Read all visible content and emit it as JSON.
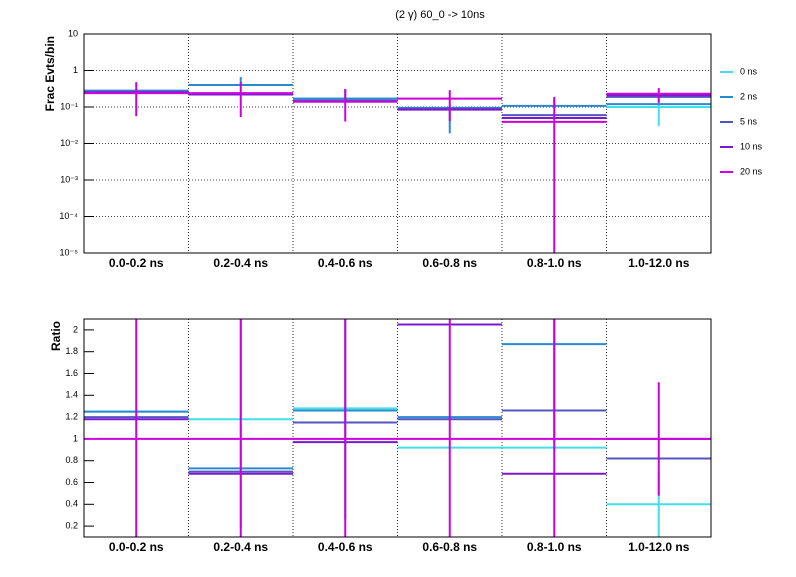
{
  "chart_data": [
    {
      "type": "step",
      "title": "(2 γ) 60_0 -> 10ns",
      "y_label": "Frac Evts/bin",
      "log_y": true,
      "grid": "both",
      "legend": "right",
      "categories": [
        "0.0-0.2 ns",
        "0.2-0.4 ns",
        "0.4-0.6 ns",
        "0.6-0.8 ns",
        "0.8-1.0 ns",
        "1.0-12.0 ns"
      ],
      "ylim": [
        1e-05,
        10
      ],
      "yticks": [
        {
          "value": 1e-05,
          "label": "10⁻⁵"
        },
        {
          "value": 0.0001,
          "label": "10⁻⁴"
        },
        {
          "value": 0.001,
          "label": "10⁻³"
        },
        {
          "value": 0.01,
          "label": "10⁻²"
        },
        {
          "value": 0.1,
          "label": "10⁻¹"
        },
        1,
        10
      ],
      "series": [
        {
          "name": "0 ns",
          "color": "#40e0e8",
          "values": [
            0.27,
            0.4,
            0.17,
            0.095,
            0.05,
            0.1
          ],
          "errors_low": [
            null,
            null,
            null,
            null,
            null,
            0.07
          ],
          "errors_high": [
            null,
            null,
            null,
            null,
            null,
            0.2
          ]
        },
        {
          "name": "2 ns",
          "color": "#2a8ad0",
          "values": [
            0.28,
            0.4,
            0.17,
            0.095,
            0.107,
            0.12
          ],
          "errors_low": [
            null,
            null,
            null,
            0.076,
            null,
            null
          ],
          "errors_high": [
            null,
            0.26,
            0.14,
            null,
            0.058,
            null
          ]
        },
        {
          "name": "5 ns",
          "color": "#5454c0",
          "values": [
            0.26,
            0.22,
            0.15,
            0.09,
            0.06,
            0.19
          ],
          "errors_low": [
            null,
            null,
            null,
            null,
            null,
            null
          ],
          "errors_high": [
            null,
            null,
            null,
            null,
            null,
            null
          ]
        },
        {
          "name": "10 ns",
          "color": "#7a1ad0",
          "values": [
            0.25,
            0.22,
            0.14,
            0.085,
            0.05,
            0.21
          ],
          "errors_low": [
            null,
            null,
            null,
            null,
            null,
            null
          ],
          "errors_high": [
            null,
            null,
            null,
            null,
            null,
            null
          ]
        },
        {
          "name": "20 ns",
          "color": "#cc00dd",
          "values": [
            0.24,
            0.24,
            0.14,
            0.17,
            0.039,
            0.23
          ],
          "errors_low": [
            0.184,
            0.187,
            0.1,
            0.129,
            0.039,
            0.1
          ],
          "errors_high": [
            0.24,
            0.24,
            0.17,
            0.12,
            0.15,
            0.1
          ]
        }
      ]
    },
    {
      "type": "step",
      "y_label": "Ratio",
      "log_y": false,
      "grid": "x",
      "categories": [
        "0.0-0.2 ns",
        "0.2-0.4 ns",
        "0.4-0.6 ns",
        "0.6-0.8 ns",
        "0.8-1.0 ns",
        "1.0-12.0 ns"
      ],
      "ylim": [
        0.1,
        2.1
      ],
      "yticks": [
        0.2,
        0.4,
        0.6,
        0.8,
        1,
        1.2,
        1.4,
        1.6,
        1.8,
        2
      ],
      "series": [
        {
          "color": "#40e0e8",
          "values": [
            1.25,
            1.18,
            1.28,
            0.92,
            0.92,
            0.4
          ],
          "errors": [
            null,
            1.0,
            null,
            null,
            null,
            0.3
          ]
        },
        {
          "color": "#2a8ad0",
          "values": [
            1.25,
            0.73,
            1.26,
            1.2,
            1.87,
            0.82
          ],
          "errors": [
            null,
            null,
            1.0,
            null,
            0.9,
            null
          ]
        },
        {
          "color": "#5454c0",
          "values": [
            1.2,
            0.7,
            1.15,
            1.18,
            1.26,
            0.82
          ],
          "errors": [
            null,
            null,
            null,
            null,
            null,
            null
          ]
        },
        {
          "color": "#7a1ad0",
          "values": [
            1.18,
            0.68,
            0.97,
            2.05,
            0.68,
            1.0
          ],
          "errors": [
            null,
            null,
            null,
            null,
            null,
            null
          ]
        },
        {
          "color": "#cc00dd",
          "values": [
            1,
            1,
            1,
            1,
            1,
            1
          ],
          "errors": [
            1.5,
            1.5,
            1.5,
            1.5,
            1.5,
            0.52
          ]
        }
      ]
    }
  ]
}
